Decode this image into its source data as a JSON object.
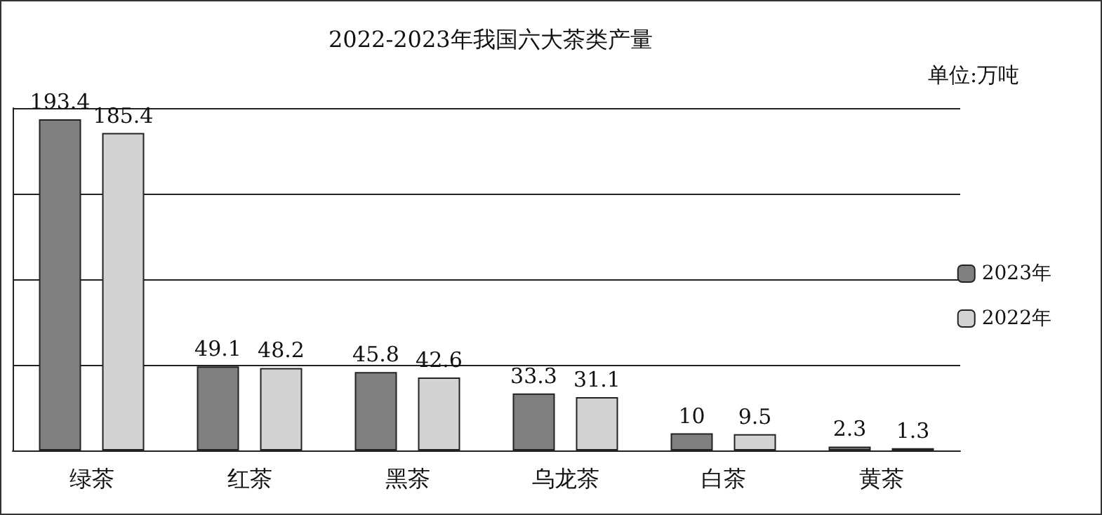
{
  "chart_data": {
    "type": "bar",
    "title": "2022-2023年我国六大茶类产量",
    "annotations": [
      "单位:万吨"
    ],
    "categories": [
      "绿茶",
      "红茶",
      "黑茶",
      "乌龙茶",
      "白茶",
      "黄茶"
    ],
    "series": [
      {
        "name": "2023年",
        "color": "#808080",
        "values": [
          193.4,
          49.1,
          45.8,
          33.3,
          10,
          2.3
        ]
      },
      {
        "name": "2022年",
        "color": "#d3d3d3",
        "values": [
          185.4,
          48.2,
          42.6,
          31.1,
          9.5,
          1.3
        ]
      }
    ],
    "ylim": [
      0,
      200
    ],
    "yticks": [
      {
        "value": 0,
        "label": null
      },
      {
        "value": 50,
        "label": null
      },
      {
        "value": 100,
        "label": null
      },
      {
        "value": 150,
        "label": null
      },
      {
        "value": 200,
        "label": null
      }
    ],
    "tick_labels": "x",
    "grid": "y",
    "legend": "right",
    "data_labels": true
  }
}
